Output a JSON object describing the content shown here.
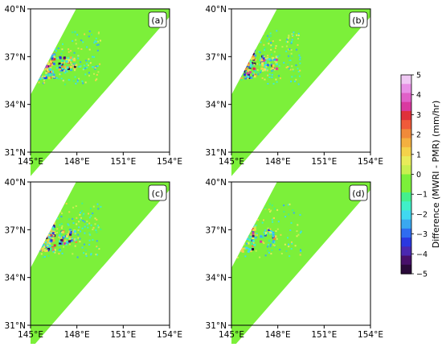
{
  "chart_data": {
    "type": "heatmap",
    "panels": [
      {
        "label": "(a)",
        "intensity": 1.0
      },
      {
        "label": "(b)",
        "intensity": 1.0
      },
      {
        "label": "(c)",
        "intensity": 1.0
      },
      {
        "label": "(d)",
        "intensity": 0.55
      }
    ],
    "xticks": [
      "145°E",
      "148°E",
      "151°E",
      "154°E"
    ],
    "yticks": [
      "40°N",
      "37°N",
      "34°N",
      "31°N"
    ],
    "xlim": [
      145,
      154
    ],
    "ylim": [
      31,
      40
    ],
    "swath_polygon_lonlat": [
      [
        145,
        34.6
      ],
      [
        147.95,
        40
      ],
      [
        154,
        40
      ],
      [
        154,
        39.5
      ],
      [
        145,
        29.5
      ]
    ],
    "colorbar": {
      "label": "Difference (MWRI - PMR) (mm/hr)",
      "range": [
        -5,
        5
      ],
      "ticks": [
        "5",
        "4",
        "3",
        "2",
        "1",
        "0",
        "−1",
        "−2",
        "−3",
        "−4",
        "−5"
      ],
      "colors": [
        "#f0c8f4",
        "#e890e6",
        "#e060c8",
        "#d93aa0",
        "#e0303a",
        "#f05a3a",
        "#f08a3a",
        "#f4b040",
        "#f4d24a",
        "#e8ec5a",
        "#c8f050",
        "#7cf03a",
        "#7cf03a",
        "#44f08c",
        "#40f0c8",
        "#40d8f0",
        "#3aa8f0",
        "#2f6cf0",
        "#2a38e0",
        "#4a28b0",
        "#48106a",
        "#2a0a3a"
      ]
    }
  }
}
